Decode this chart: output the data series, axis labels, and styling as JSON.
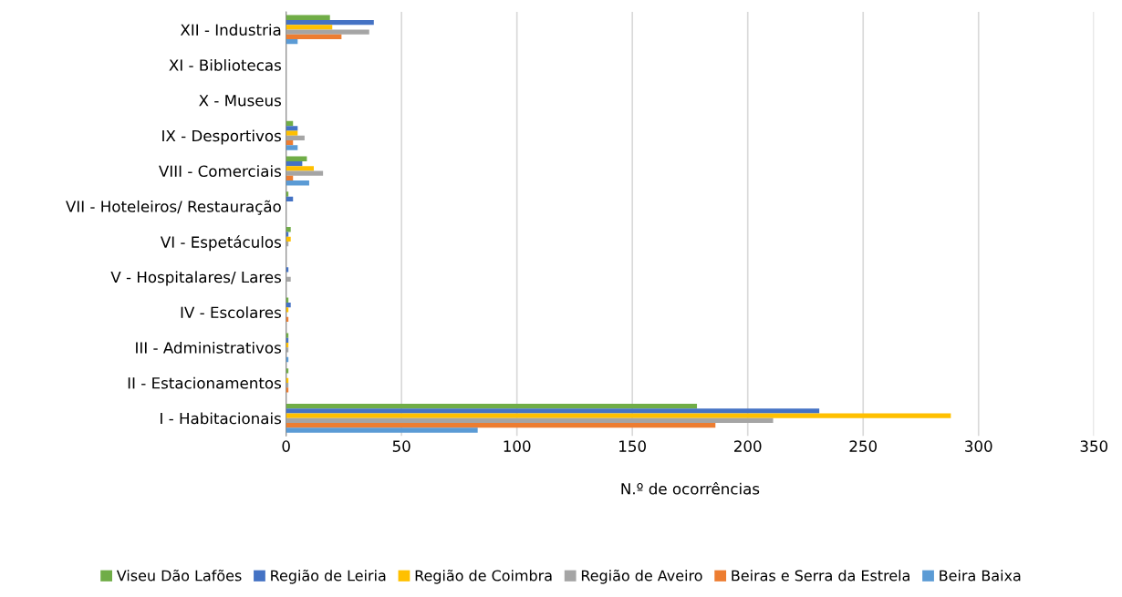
{
  "chart_data": {
    "type": "bar",
    "orientation": "horizontal",
    "xlabel": "N.º de ocorrências",
    "categories": [
      "XII - Industria",
      "XI - Bibliotecas",
      "X - Museus",
      "IX - Desportivos",
      "VIII - Comerciais",
      "VII - Hoteleiros/ Restauração",
      "VI - Espetáculos",
      "V - Hospitalares/ Lares",
      "IV - Escolares",
      "III - Administrativos",
      "II - Estacionamentos",
      "I - Habitacionais"
    ],
    "series": [
      {
        "name": "Viseu Dão Lafões",
        "color": "#70ad47",
        "values": [
          19,
          0,
          0,
          3,
          9,
          1,
          2,
          0,
          1,
          1,
          1,
          178
        ]
      },
      {
        "name": "Região de Leiria",
        "color": "#4472c4",
        "values": [
          38,
          0,
          0,
          5,
          7,
          3,
          1,
          1,
          2,
          1,
          0,
          231
        ]
      },
      {
        "name": "Região de Coimbra",
        "color": "#ffc000",
        "values": [
          20,
          0,
          0,
          5,
          12,
          0,
          2,
          0,
          1,
          1,
          1,
          288
        ]
      },
      {
        "name": "Região de Aveiro",
        "color": "#a5a5a5",
        "values": [
          36,
          0,
          0,
          8,
          16,
          0,
          1,
          2,
          0,
          1,
          1,
          211
        ]
      },
      {
        "name": "Beiras e Serra da Estrela",
        "color": "#ed7d31",
        "values": [
          24,
          0,
          0,
          3,
          3,
          0,
          0,
          0,
          1,
          0,
          1,
          186
        ]
      },
      {
        "name": "Beira Baixa",
        "color": "#5b9bd5",
        "values": [
          5,
          0,
          0,
          5,
          10,
          0,
          0,
          0,
          0,
          1,
          0,
          83
        ]
      }
    ],
    "xlim": [
      0,
      350
    ],
    "xticks": [
      0,
      50,
      100,
      150,
      200,
      250,
      300,
      350
    ],
    "grid": "x",
    "legend": "bottom"
  }
}
